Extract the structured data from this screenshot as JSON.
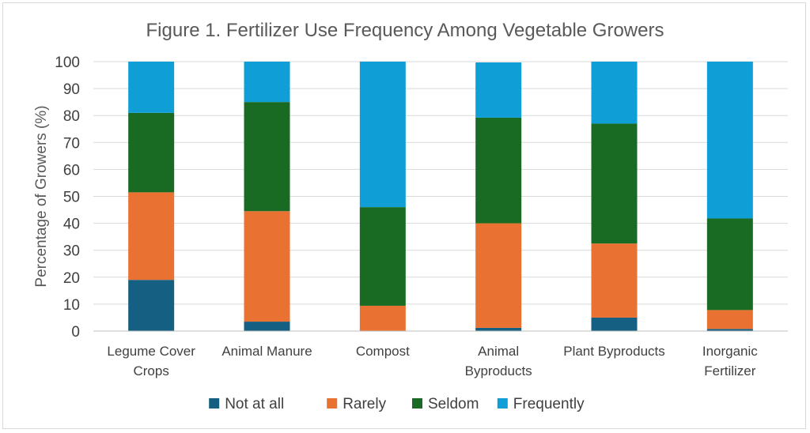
{
  "chart_data": {
    "type": "bar",
    "stacked": true,
    "title": "Figure 1. Fertilizer Use Frequency Among Vegetable Growers",
    "xlabel": "",
    "ylabel": "Percentage of Growers (%)",
    "ylim": [
      0,
      100
    ],
    "yticks": [
      0,
      10,
      20,
      30,
      40,
      50,
      60,
      70,
      80,
      90,
      100
    ],
    "grid": true,
    "legend_position": "bottom",
    "categories": [
      [
        "Legume Cover",
        "Crops"
      ],
      [
        "Animal Manure"
      ],
      [
        "Compost"
      ],
      [
        "Animal",
        "Byproducts"
      ],
      [
        "Plant Byproducts"
      ],
      [
        "Inorganic",
        "Fertilizer"
      ]
    ],
    "series": [
      {
        "name": "Not at all",
        "color": "#156082",
        "values": [
          19,
          3.5,
          0,
          1.2,
          5,
          0.8
        ]
      },
      {
        "name": "Rarely",
        "color": "#E97132",
        "values": [
          32.5,
          41,
          9.4,
          38.8,
          27.5,
          7
        ]
      },
      {
        "name": "Seldom",
        "color": "#196B24",
        "values": [
          29.5,
          40.5,
          36.6,
          39.2,
          44.5,
          34
        ]
      },
      {
        "name": "Frequently",
        "color": "#0F9ED5",
        "values": [
          19,
          15,
          54,
          20.5,
          23,
          58.2
        ]
      }
    ]
  }
}
